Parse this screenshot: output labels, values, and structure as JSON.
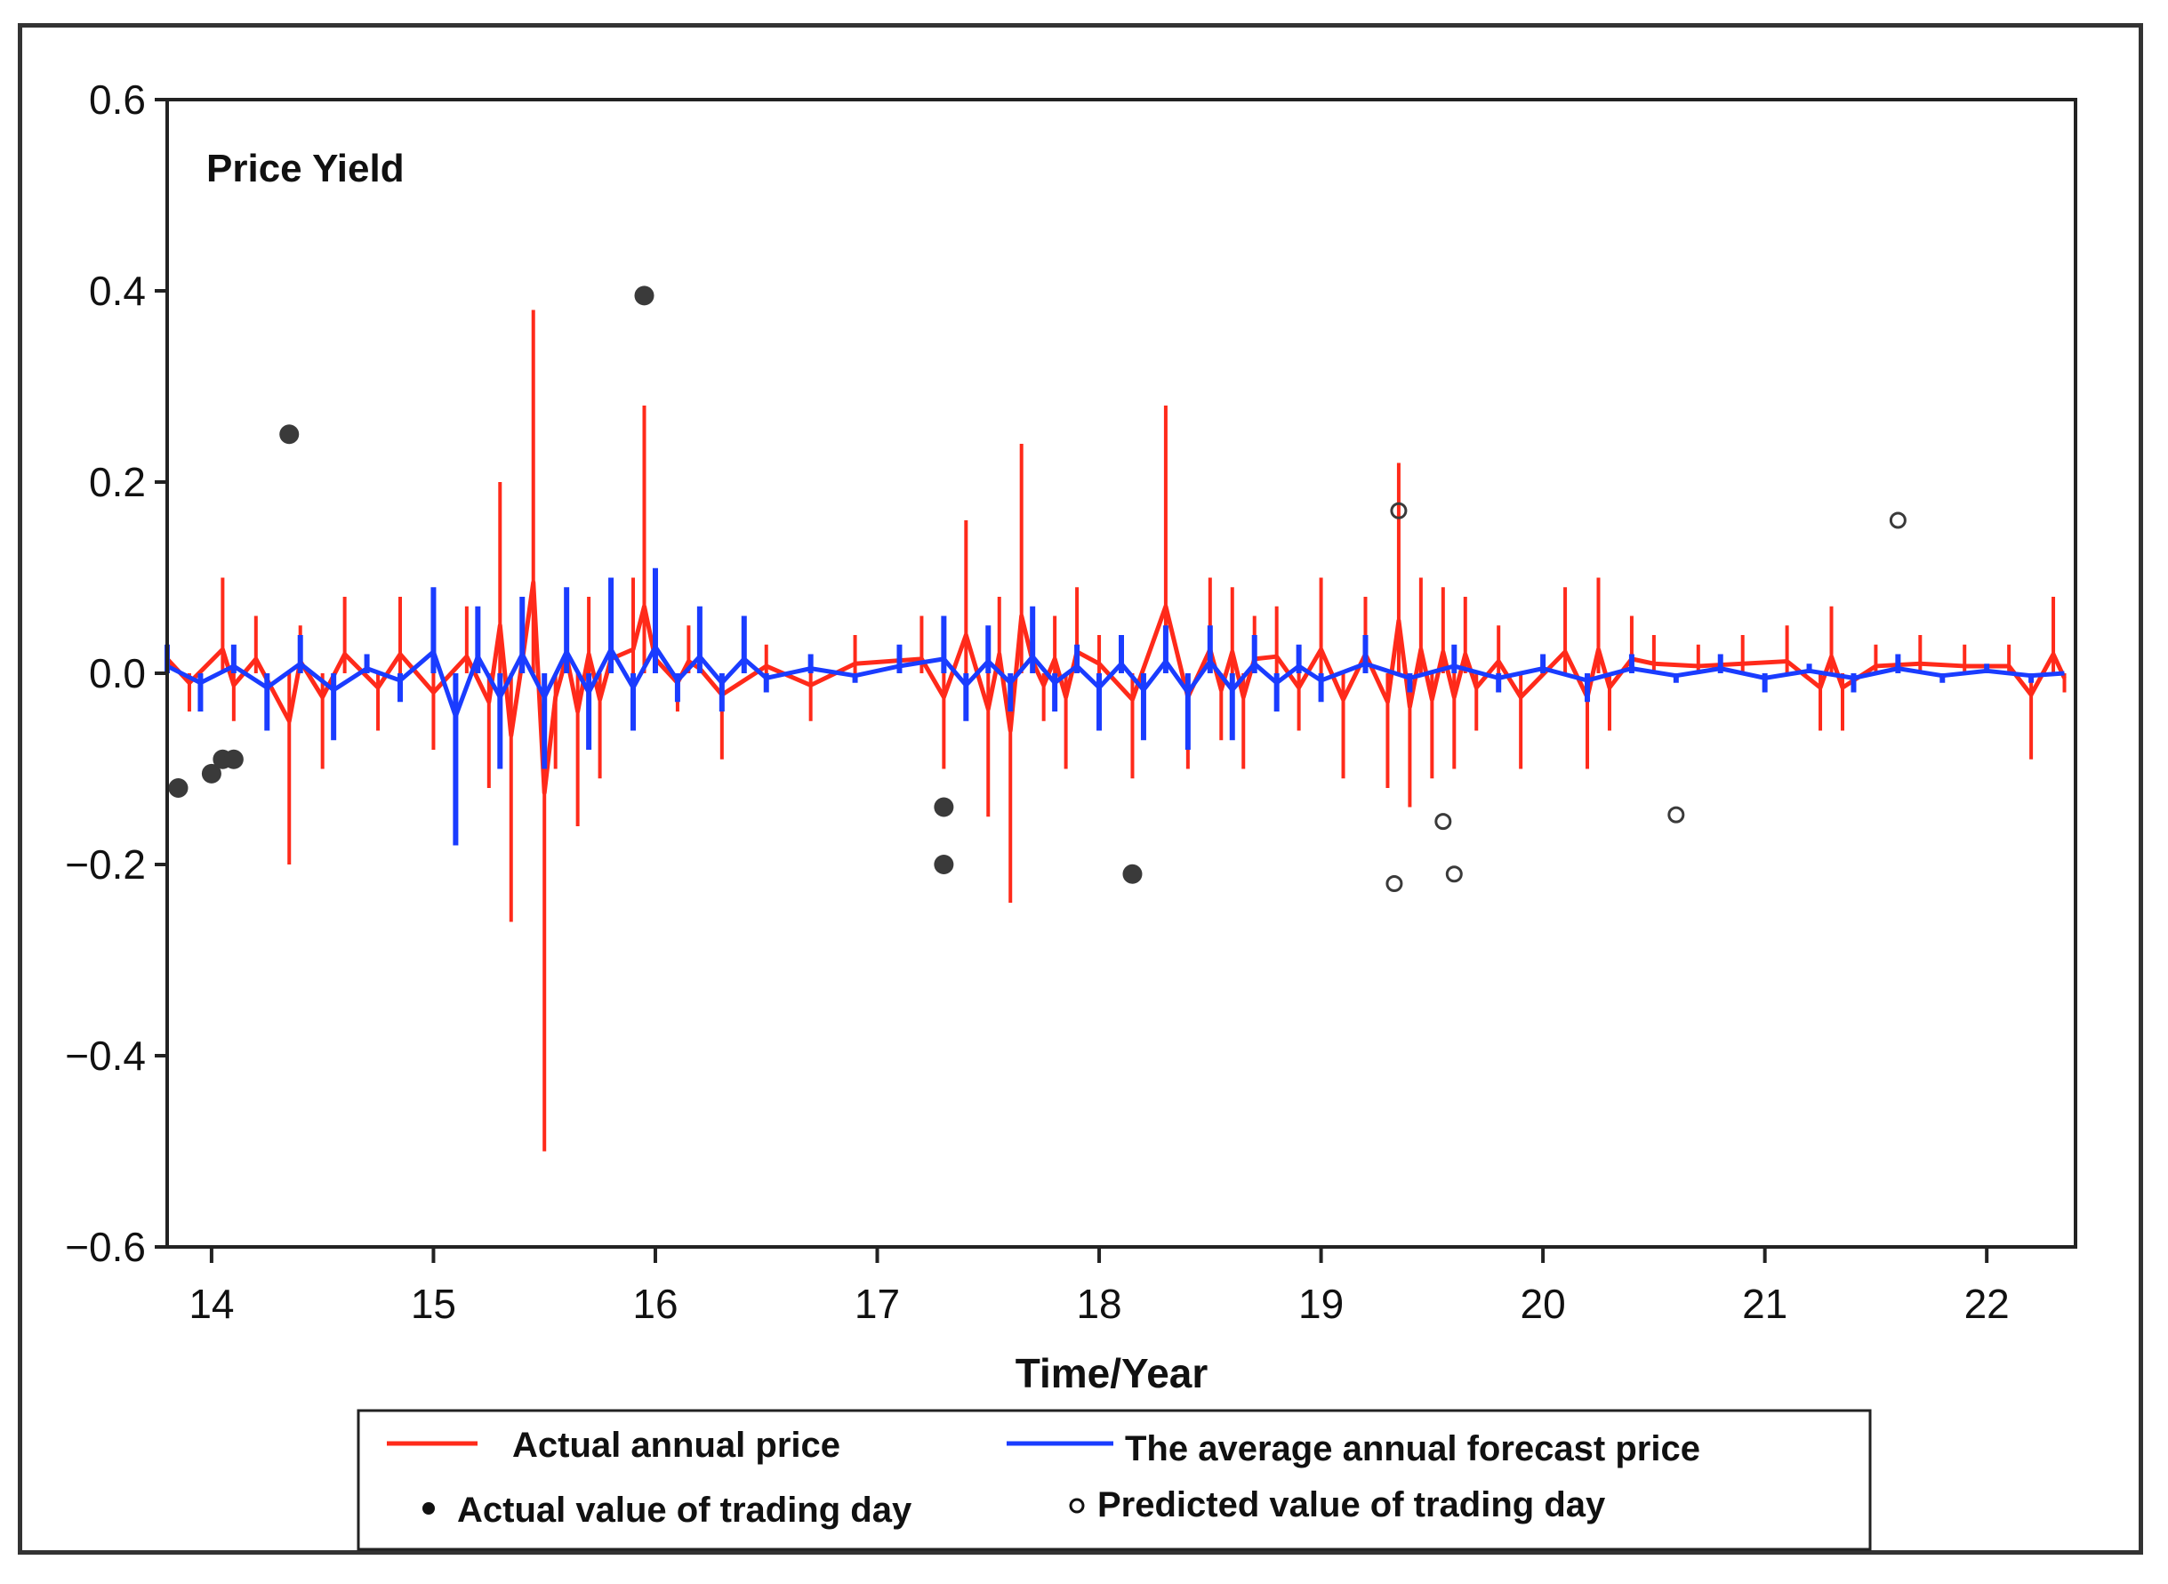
{
  "chart_data": {
    "type": "line",
    "title": "Price Yield",
    "xlabel": "Time/Year",
    "ylabel": "",
    "xlim": [
      13.8,
      22.4
    ],
    "ylim": [
      -0.6,
      0.6
    ],
    "x_ticks": [
      14,
      15,
      16,
      17,
      18,
      19,
      20,
      21,
      22
    ],
    "x_tick_labels": [
      "14",
      "15",
      "16",
      "17",
      "18",
      "19",
      "20",
      "21",
      "22"
    ],
    "y_ticks": [
      0.6,
      0.4,
      0.2,
      0.0,
      -0.2,
      -0.4,
      -0.6
    ],
    "y_tick_labels": [
      "0.6",
      "0.4",
      "0.2",
      "0.0",
      "−0.2",
      "−0.4",
      "−0.6"
    ],
    "grid": false,
    "legend_position": "bottom",
    "colors": {
      "actual": "#ff2a1a",
      "forecast": "#1a3cff",
      "actual_points": "#3a3a3a",
      "predicted_points": "#3a3a3a"
    },
    "series": [
      {
        "name": "Actual annual price",
        "style": "line",
        "x": [
          13.8,
          13.9,
          14.05,
          14.1,
          14.2,
          14.35,
          14.4,
          14.5,
          14.6,
          14.75,
          14.85,
          15.0,
          15.15,
          15.25,
          15.3,
          15.35,
          15.4,
          15.45,
          15.5,
          15.55,
          15.6,
          15.65,
          15.7,
          15.75,
          15.8,
          15.9,
          15.95,
          16.0,
          16.1,
          16.15,
          16.2,
          16.3,
          16.5,
          16.7,
          16.9,
          17.2,
          17.3,
          17.4,
          17.5,
          17.55,
          17.6,
          17.65,
          17.7,
          17.75,
          17.8,
          17.85,
          17.9,
          18.0,
          18.15,
          18.3,
          18.4,
          18.5,
          18.55,
          18.6,
          18.65,
          18.7,
          18.8,
          18.9,
          19.0,
          19.1,
          19.2,
          19.3,
          19.35,
          19.4,
          19.45,
          19.5,
          19.55,
          19.6,
          19.65,
          19.7,
          19.8,
          19.9,
          20.1,
          20.2,
          20.25,
          20.3,
          20.4,
          20.5,
          20.7,
          20.9,
          21.1,
          21.25,
          21.3,
          21.35,
          21.5,
          21.7,
          21.9,
          22.1,
          22.2,
          22.3,
          22.35
        ],
        "values": [
          0.06,
          -0.04,
          0.1,
          -0.05,
          0.06,
          -0.2,
          0.05,
          -0.1,
          0.08,
          -0.06,
          0.08,
          -0.08,
          0.07,
          -0.12,
          0.2,
          -0.26,
          0.05,
          0.38,
          -0.5,
          -0.1,
          0.07,
          -0.16,
          0.08,
          -0.11,
          0.06,
          0.1,
          0.28,
          0.06,
          -0.04,
          0.05,
          0.02,
          -0.09,
          0.03,
          -0.05,
          0.04,
          0.06,
          -0.1,
          0.16,
          -0.15,
          0.08,
          -0.24,
          0.24,
          0.05,
          -0.05,
          0.06,
          -0.1,
          0.09,
          0.04,
          -0.11,
          0.28,
          -0.1,
          0.1,
          -0.07,
          0.09,
          -0.1,
          0.06,
          0.07,
          -0.06,
          0.1,
          -0.11,
          0.08,
          -0.12,
          0.22,
          -0.14,
          0.1,
          -0.11,
          0.09,
          -0.1,
          0.08,
          -0.06,
          0.05,
          -0.1,
          0.09,
          -0.1,
          0.1,
          -0.06,
          0.06,
          0.04,
          0.03,
          0.04,
          0.05,
          -0.06,
          0.07,
          -0.06,
          0.03,
          0.04,
          0.03,
          0.03,
          -0.09,
          0.08,
          -0.02
        ]
      },
      {
        "name": "The average annual forecast price",
        "style": "line",
        "x": [
          13.8,
          13.95,
          14.1,
          14.25,
          14.4,
          14.55,
          14.7,
          14.85,
          15.0,
          15.1,
          15.2,
          15.3,
          15.4,
          15.5,
          15.6,
          15.7,
          15.8,
          15.9,
          16.0,
          16.1,
          16.2,
          16.3,
          16.4,
          16.5,
          16.7,
          16.9,
          17.1,
          17.3,
          17.4,
          17.5,
          17.6,
          17.7,
          17.8,
          17.9,
          18.0,
          18.1,
          18.2,
          18.3,
          18.4,
          18.5,
          18.6,
          18.7,
          18.8,
          18.9,
          19.0,
          19.2,
          19.4,
          19.6,
          19.8,
          20.0,
          20.2,
          20.4,
          20.6,
          20.8,
          21.0,
          21.2,
          21.4,
          21.6,
          21.8,
          22.0,
          22.2,
          22.35
        ],
        "values": [
          0.03,
          -0.04,
          0.03,
          -0.06,
          0.04,
          -0.07,
          0.02,
          -0.03,
          0.09,
          -0.18,
          0.07,
          -0.1,
          0.08,
          -0.1,
          0.09,
          -0.08,
          0.1,
          -0.06,
          0.11,
          -0.03,
          0.07,
          -0.04,
          0.06,
          -0.02,
          0.02,
          -0.01,
          0.03,
          0.06,
          -0.05,
          0.05,
          -0.04,
          0.07,
          -0.04,
          0.03,
          -0.06,
          0.04,
          -0.07,
          0.05,
          -0.08,
          0.05,
          -0.07,
          0.04,
          -0.04,
          0.03,
          -0.03,
          0.04,
          -0.02,
          0.03,
          -0.02,
          0.02,
          -0.03,
          0.02,
          -0.01,
          0.02,
          -0.02,
          0.01,
          -0.02,
          0.02,
          -0.01,
          0.01,
          -0.01,
          0.0
        ]
      },
      {
        "name": "Actual value of trading day",
        "style": "filled-points",
        "x": [
          13.85,
          14.0,
          14.05,
          14.1,
          14.35,
          15.95,
          17.3,
          17.3,
          18.15
        ],
        "values": [
          -0.12,
          -0.105,
          -0.09,
          -0.09,
          0.25,
          0.395,
          -0.14,
          -0.2,
          -0.21
        ]
      },
      {
        "name": "Predicted value of trading day",
        "style": "open-points",
        "x": [
          19.35,
          19.33,
          19.55,
          19.6,
          20.6,
          21.6
        ],
        "values": [
          0.17,
          -0.22,
          -0.155,
          -0.21,
          -0.148,
          0.16
        ]
      }
    ],
    "legend": [
      {
        "label": "Actual annual price",
        "symbol": "red-line"
      },
      {
        "label": "The average annual forecast price",
        "symbol": "blue-line"
      },
      {
        "label": "Actual value of trading day",
        "symbol": "filled-dot"
      },
      {
        "label": "Predicted value of trading day",
        "symbol": "open-dot"
      }
    ]
  }
}
